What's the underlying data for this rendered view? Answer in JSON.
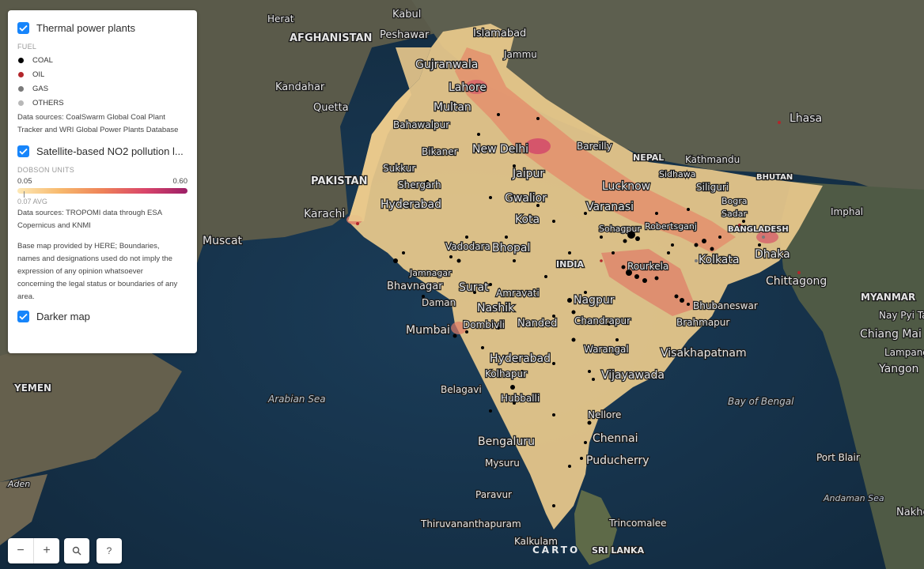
{
  "layers": [
    {
      "title": "Thermal power plants",
      "checked": true
    },
    {
      "title": "Satellite-based NO2 pollution l...",
      "checked": true
    },
    {
      "title": "Darker map",
      "checked": true
    }
  ],
  "fuel_legend": {
    "label": "FUEL",
    "items": [
      {
        "label": "COAL",
        "color": "#000000"
      },
      {
        "label": "OIL",
        "color": "#b3262b"
      },
      {
        "label": "GAS",
        "color": "#7a7a7a"
      },
      {
        "label": "OTHERS",
        "color": "#b8b8b8"
      }
    ]
  },
  "plants_source_line1": "Data sources: CoalSwarm Global Coal Plant",
  "plants_source_line2": "Tracker and WRI Global Power Plants Database",
  "no2_legend": {
    "label": "DOBSON UNITS",
    "min": "0.05",
    "max": "0.60",
    "avg": "0.07 AVG"
  },
  "no2_source_line1": "Data sources: TROPOMI data through ESA",
  "no2_source_line2": "Copernicus and KNMI",
  "basemap_note": [
    "Base map provided by HERE; Boundaries,",
    "names and designations used do not imply the",
    "expression of any opinion whatsoever",
    "concerning the legal status or boundaries of any",
    "area."
  ],
  "controls": {
    "zoom_out": "−",
    "zoom_in": "+",
    "search": "⚲",
    "help": "?"
  },
  "attribution": "CARTO",
  "map_labels": {
    "countries": [
      "AFGHANISTAN",
      "PAKISTAN",
      "NEPAL",
      "BHUTAN",
      "INDIA",
      "BANGLADESH",
      "MYANMAR",
      "SRI LANKA",
      "YEMEN"
    ],
    "cities": [
      "Herat",
      "Kabul",
      "Peshawar",
      "Islamabad",
      "Jammu",
      "Gujranwala",
      "Lahore",
      "Multan",
      "Kandahar",
      "Quetta",
      "Bahawalpur",
      "Bikaner",
      "Sukkur",
      "Shergarh",
      "Hyderabad",
      "Karachi",
      "Muscat",
      "New Delhi",
      "Jaipur",
      "Bareilly",
      "Kathmandu",
      "Lhasa",
      "Sidhawa",
      "Siliguri",
      "Gwalior",
      "Kota",
      "Lucknow",
      "Varanasi",
      "Bhopal",
      "Vadodara",
      "Bhavnagar",
      "Surat",
      "Jamnagar",
      "Daman",
      "Nashik",
      "Mumbai",
      "Dombivli",
      "Nagpur",
      "Chandrapur",
      "Amravati",
      "Nanded",
      "Kolkata",
      "Dhaka",
      "Chittagong",
      "Rourkela",
      "Bhubaneswar",
      "Brahmapur",
      "Visakhapatnam",
      "Vijayawada",
      "Warangal",
      "Hyderabad",
      "Kolhapur",
      "Belagavi",
      "Hubballi",
      "Nellore",
      "Chennai",
      "Puducherry",
      "Bengaluru",
      "Mysuru",
      "Paravur",
      "Thiruvananthapuram",
      "Trincomalee",
      "Kalkulam",
      "Sohagpur",
      "Robertsganj",
      "Bogra",
      "Sadar",
      "Imphal",
      "Nay Pyi Taw",
      "Chiang Mai",
      "Lampang",
      "Yangon",
      "Port Blair",
      "Nakhon Thammarat",
      "Aden"
    ],
    "water": [
      "Arabian Sea",
      "Bay of Bengal",
      "Andaman Sea"
    ]
  }
}
